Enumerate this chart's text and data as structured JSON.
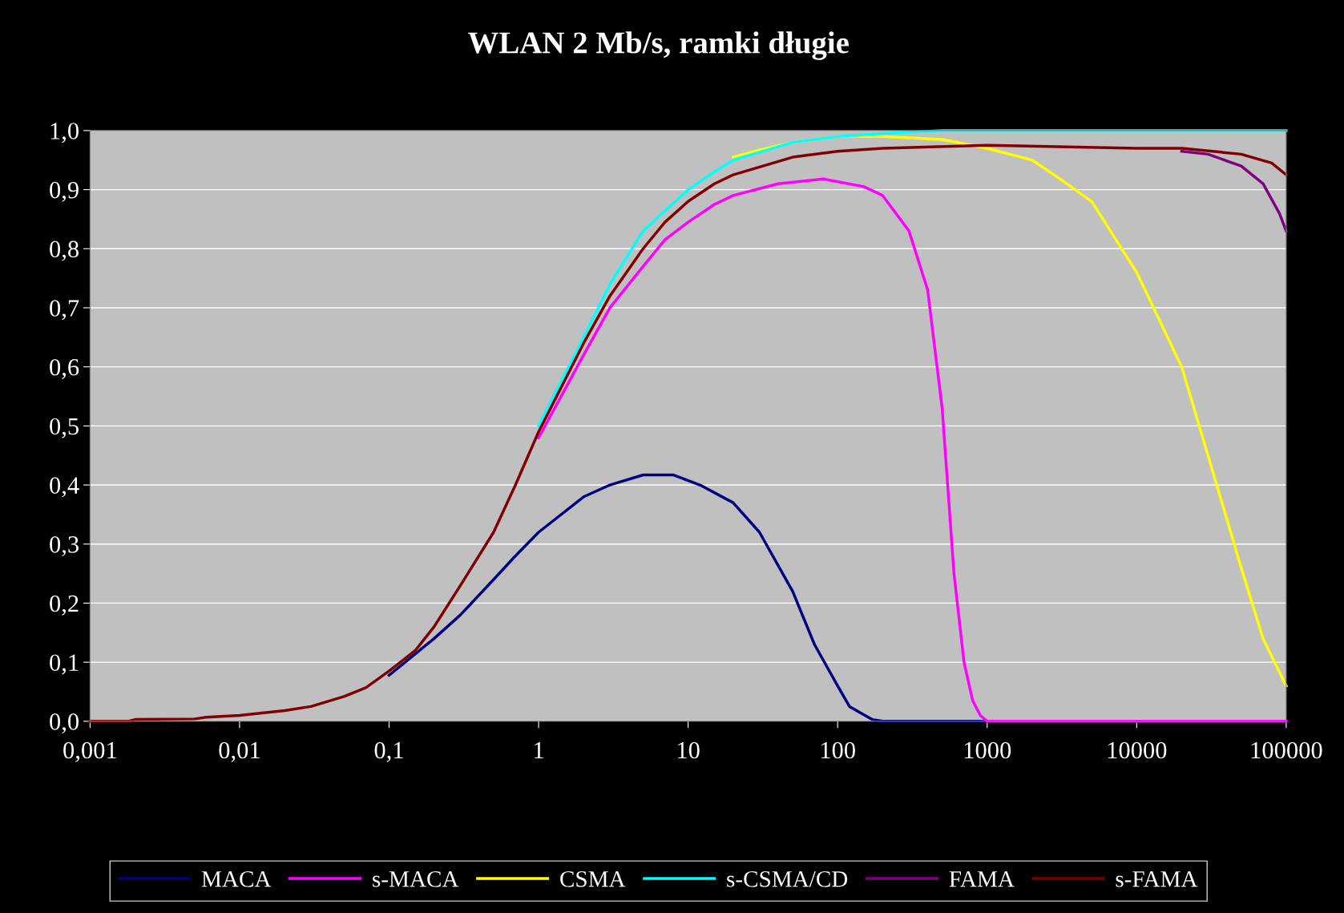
{
  "chart_data": {
    "type": "line",
    "title": "WLAN 2 Mb/s, ramki długie",
    "log": "x",
    "grid": "y",
    "legend": "bottom",
    "xlim": [
      0.001,
      100000
    ],
    "xticks": [
      {
        "value": 0.001,
        "label": "0,001"
      },
      {
        "value": 0.01,
        "label": "0,01"
      },
      {
        "value": 0.1,
        "label": "0,1"
      },
      1,
      10,
      100,
      1000,
      10000,
      100000
    ],
    "ylim": [
      0,
      1
    ],
    "yticks": [
      {
        "value": 0,
        "label": "0,0"
      },
      {
        "value": 0.1,
        "label": "0,1"
      },
      {
        "value": 0.2,
        "label": "0,2"
      },
      {
        "value": 0.3,
        "label": "0,3"
      },
      {
        "value": 0.4,
        "label": "0,4"
      },
      {
        "value": 0.5,
        "label": "0,5"
      },
      {
        "value": 0.6,
        "label": "0,6"
      },
      {
        "value": 0.7,
        "label": "0,7"
      },
      {
        "value": 0.8,
        "label": "0,8"
      },
      {
        "value": 0.9,
        "label": "0,9"
      },
      {
        "value": 1,
        "label": "1,0"
      }
    ],
    "series": [
      {
        "name": "MACA",
        "color": "#000080",
        "x": [
          0.1,
          0.2,
          0.3,
          0.5,
          0.7,
          1,
          2,
          3,
          5,
          8,
          12,
          20,
          30,
          50,
          70,
          100,
          120,
          170,
          200,
          1000,
          10000,
          100000
        ],
        "values": [
          0.078,
          0.14,
          0.18,
          0.24,
          0.28,
          0.32,
          0.38,
          0.4,
          0.417,
          0.417,
          0.4,
          0.37,
          0.32,
          0.22,
          0.13,
          0.06,
          0.025,
          0.003,
          0,
          0,
          0,
          0
        ]
      },
      {
        "name": "s-MACA",
        "color": "#ff00ff",
        "x": [
          1,
          2,
          3,
          5,
          7,
          10,
          15,
          20,
          40,
          80,
          150,
          200,
          300,
          400,
          500,
          600,
          700,
          800,
          900,
          1000,
          10000,
          100000
        ],
        "values": [
          0.48,
          0.62,
          0.7,
          0.77,
          0.815,
          0.845,
          0.875,
          0.89,
          0.91,
          0.918,
          0.905,
          0.89,
          0.83,
          0.73,
          0.53,
          0.25,
          0.1,
          0.035,
          0.01,
          0,
          0,
          0
        ]
      },
      {
        "name": "CSMA",
        "color": "#ffff00",
        "x": [
          20,
          30,
          50,
          100,
          200,
          500,
          1000,
          2000,
          3000,
          5000,
          10000,
          20000,
          30000,
          50000,
          70000,
          100000
        ],
        "values": [
          0.955,
          0.967,
          0.98,
          0.99,
          0.99,
          0.985,
          0.97,
          0.95,
          0.92,
          0.88,
          0.76,
          0.6,
          0.45,
          0.26,
          0.14,
          0.06
        ]
      },
      {
        "name": "s-CSMA/CD",
        "color": "#00ffff",
        "x": [
          1,
          2,
          3,
          5,
          10,
          15,
          20,
          50,
          100,
          200,
          500,
          1000,
          10000,
          100000
        ],
        "values": [
          0.5,
          0.65,
          0.74,
          0.83,
          0.9,
          0.93,
          0.95,
          0.98,
          0.99,
          0.995,
          1,
          1,
          1,
          1
        ]
      },
      {
        "name": "FAMA",
        "color": "#800080",
        "x": [
          20000,
          30000,
          50000,
          70000,
          90000,
          100000
        ],
        "values": [
          0.965,
          0.96,
          0.94,
          0.91,
          0.86,
          0.83
        ]
      },
      {
        "name": "s-FAMA",
        "color": "#800000",
        "x": [
          0.001,
          0.0018,
          0.002,
          0.005,
          0.006,
          0.01,
          0.02,
          0.03,
          0.05,
          0.07,
          0.1,
          0.15,
          0.2,
          0.3,
          0.5,
          0.7,
          1,
          2,
          3,
          5,
          7,
          10,
          15,
          20,
          50,
          100,
          200,
          1000,
          10000,
          20000,
          50000,
          80000,
          100000
        ],
        "values": [
          0,
          0,
          0.003,
          0.004,
          0.007,
          0.01,
          0.018,
          0.025,
          0.042,
          0.057,
          0.085,
          0.12,
          0.16,
          0.23,
          0.32,
          0.4,
          0.49,
          0.64,
          0.72,
          0.8,
          0.845,
          0.88,
          0.91,
          0.925,
          0.955,
          0.965,
          0.97,
          0.975,
          0.97,
          0.97,
          0.96,
          0.945,
          0.925
        ]
      }
    ]
  }
}
